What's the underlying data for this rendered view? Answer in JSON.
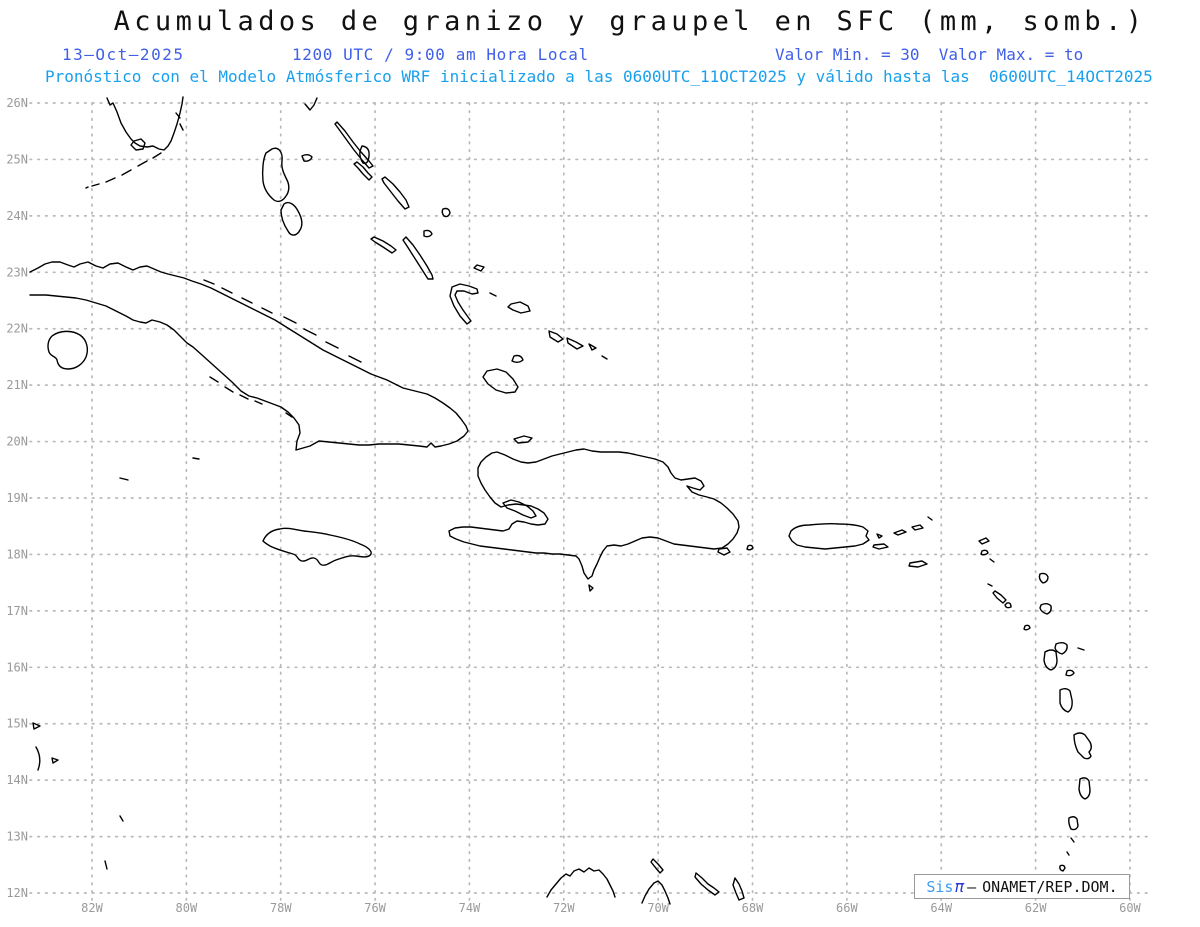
{
  "title": "Acumulados de granizo y graupel en SFC (mm, somb.)",
  "header": {
    "date": "13–Oct–2025",
    "time": "1200 UTC / 9:00 am Hora Local",
    "minmax": "Valor Min. = 30  Valor Max. = to",
    "forecast": "Pronóstico con el Modelo Atmósferico WRF inicializado a las 0600UTC_11OCT2025 y válido hasta las  0600UTC_14OCT2025"
  },
  "map": {
    "lat_ticks": [
      "26N",
      "25N",
      "24N",
      "23N",
      "22N",
      "21N",
      "20N",
      "19N",
      "18N",
      "17N",
      "16N",
      "15N",
      "14N",
      "13N",
      "12N"
    ],
    "lon_ticks": [
      "82W",
      "80W",
      "78W",
      "76W",
      "74W",
      "72W",
      "70W",
      "68W",
      "66W",
      "64W",
      "62W",
      "60W"
    ]
  },
  "branding": {
    "sis": "Sis",
    "pi": "π",
    "dash": "–",
    "org": "ONAMET/REP.DOM."
  },
  "colors": {
    "title_text": "#111111",
    "header_blue": "#4060E8",
    "forecast_cyan": "#18A0EE",
    "axis_label_gray": "#9a9a9a",
    "grid_gray": "#b9b9b9",
    "coastline": "#000000",
    "brand_sis_blue": "#3F9BF2",
    "brand_pi_blue": "#2B36D8"
  }
}
